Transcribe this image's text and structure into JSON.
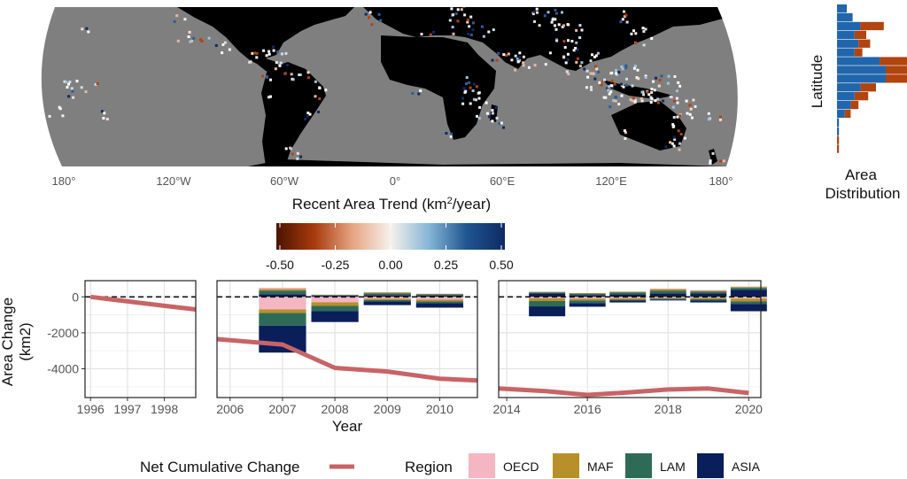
{
  "map": {
    "lon_ticks": [
      "180°",
      "120°W",
      "60°W",
      "0°",
      "60°E",
      "120°E",
      "180°"
    ]
  },
  "colorbar": {
    "title_main": "Recent Area Trend (km",
    "title_sup": "2",
    "title_end": "/year)",
    "tick_labels": [
      "-0.50",
      "-0.25",
      "0.00",
      "0.25",
      "0.50"
    ],
    "stops": [
      "#4a1300",
      "#a83b0e",
      "#e5a583",
      "#f7f1ec",
      "#86b6d6",
      "#1f5590",
      "#0e2a63"
    ]
  },
  "side_hist": {
    "ylabel": "Latitude",
    "xlabel_line1": "Area",
    "xlabel_line2": "Distribution",
    "blue_color": "#2166ac",
    "orange_color": "#b2440f",
    "rows": [
      {
        "blue": 5,
        "orange": 0
      },
      {
        "blue": 8,
        "orange": 0
      },
      {
        "blue": 12,
        "orange": 12
      },
      {
        "blue": 9,
        "orange": 6
      },
      {
        "blue": 11,
        "orange": 6
      },
      {
        "blue": 9,
        "orange": 4
      },
      {
        "blue": 22,
        "orange": 14
      },
      {
        "blue": 25,
        "orange": 18
      },
      {
        "blue": 25,
        "orange": 12
      },
      {
        "blue": 12,
        "orange": 8
      },
      {
        "blue": 9,
        "orange": 7
      },
      {
        "blue": 7,
        "orange": 4
      },
      {
        "blue": 4,
        "orange": 3
      },
      {
        "blue": 1,
        "orange": 0
      },
      {
        "blue": 1,
        "orange": 0
      },
      {
        "blue": 0,
        "orange": 1
      },
      {
        "blue": 0,
        "orange": 1
      }
    ]
  },
  "chart_data": {
    "type": "bar",
    "ylabel_line1": "Area Change",
    "ylabel_line2": "(km2)",
    "xlabel": "Year",
    "ylim": [
      -5600,
      900
    ],
    "y_ticks": [
      0,
      -2000,
      -4000
    ],
    "y_tick_labels": [
      "0",
      "-2000",
      "-4000"
    ],
    "colors": {
      "OECD": "#f4b6c2",
      "MAF": "#b8902a",
      "LAM": "#2e6b57",
      "ASIA": "#0a1e5a",
      "net": "#c96366"
    },
    "panels": [
      {
        "xlim": [
          1995.85,
          1998.85
        ],
        "x_ticks": [
          1996,
          1997,
          1998
        ],
        "x_tick_labels": [
          "1996",
          "1997",
          "1998"
        ],
        "bars": [],
        "net": {
          "x": [
            1996,
            1997,
            1998,
            1998.85
          ],
          "y": [
            0,
            -250,
            -500,
            -700
          ]
        }
      },
      {
        "xlim": [
          2005.75,
          2010.72
        ],
        "x_ticks": [
          2006,
          2007,
          2008,
          2009,
          2010
        ],
        "x_tick_labels": [
          "2006",
          "2007",
          "2008",
          "2009",
          "2010"
        ],
        "bar_width": 0.9,
        "bars": [
          {
            "year": 2007,
            "positive": {
              "ASIA": 150,
              "LAM": 200,
              "MAF": 80,
              "OECD": 80
            },
            "negative": {
              "OECD": -700,
              "MAF": -200,
              "LAM": -700,
              "ASIA": -1500
            }
          },
          {
            "year": 2008,
            "positive": {
              "ASIA": 60,
              "LAM": 40,
              "MAF": 20,
              "OECD": 0
            },
            "negative": {
              "OECD": -300,
              "MAF": -200,
              "LAM": -300,
              "ASIA": -600
            }
          },
          {
            "year": 2009,
            "positive": {
              "ASIA": 100,
              "LAM": 100,
              "MAF": 50,
              "OECD": 0
            },
            "negative": {
              "OECD": -100,
              "MAF": -80,
              "LAM": -80,
              "ASIA": -200
            }
          },
          {
            "year": 2010,
            "positive": {
              "ASIA": 80,
              "LAM": 60,
              "MAF": 30,
              "OECD": 0
            },
            "negative": {
              "OECD": -150,
              "MAF": -100,
              "LAM": -100,
              "ASIA": -250
            }
          }
        ],
        "net": {
          "x": [
            2005.75,
            2007,
            2008,
            2009,
            2010,
            2010.72
          ],
          "y": [
            -2350,
            -2650,
            -3950,
            -4150,
            -4550,
            -4650
          ]
        }
      },
      {
        "xlim": [
          2013.8,
          2020.3
        ],
        "x_ticks": [
          2014,
          2016,
          2018,
          2020
        ],
        "x_tick_labels": [
          "2014",
          "2016",
          "2018",
          "2020"
        ],
        "bar_width": 0.9,
        "bars": [
          {
            "year": 2015,
            "positive": {
              "ASIA": 200,
              "LAM": 50,
              "MAF": 30,
              "OECD": 0
            },
            "negative": {
              "OECD": -80,
              "MAF": -150,
              "LAM": -300,
              "ASIA": -550
            }
          },
          {
            "year": 2016,
            "positive": {
              "ASIA": 100,
              "LAM": 80,
              "MAF": 30,
              "OECD": 0
            },
            "negative": {
              "OECD": -100,
              "MAF": -100,
              "LAM": -150,
              "ASIA": -200
            }
          },
          {
            "year": 2017,
            "positive": {
              "ASIA": 150,
              "LAM": 100,
              "MAF": 40,
              "OECD": 0
            },
            "negative": {
              "OECD": -80,
              "MAF": -80,
              "LAM": -50,
              "ASIA": -100
            }
          },
          {
            "year": 2018,
            "positive": {
              "ASIA": 200,
              "LAM": 150,
              "MAF": 80,
              "OECD": 30
            },
            "negative": {
              "OECD": -50,
              "MAF": -50,
              "LAM": -50,
              "ASIA": -50
            }
          },
          {
            "year": 2019,
            "positive": {
              "ASIA": 200,
              "LAM": 100,
              "MAF": 50,
              "OECD": 30
            },
            "negative": {
              "OECD": -50,
              "MAF": -80,
              "LAM": -80,
              "ASIA": -100
            }
          },
          {
            "year": 2020,
            "positive": {
              "ASIA": 400,
              "LAM": 100,
              "MAF": 50,
              "OECD": 30
            },
            "negative": {
              "OECD": -100,
              "MAF": -150,
              "LAM": -150,
              "ASIA": -400
            }
          }
        ],
        "net": {
          "x": [
            2013.8,
            2015,
            2016,
            2017,
            2018,
            2019,
            2020
          ],
          "y": [
            -5100,
            -5250,
            -5450,
            -5320,
            -5150,
            -5100,
            -5350
          ]
        }
      }
    ]
  },
  "legend": {
    "net_label": "Net Cumulative Change",
    "region_title": "Region",
    "regions": [
      "OECD",
      "MAF",
      "LAM",
      "ASIA"
    ]
  }
}
